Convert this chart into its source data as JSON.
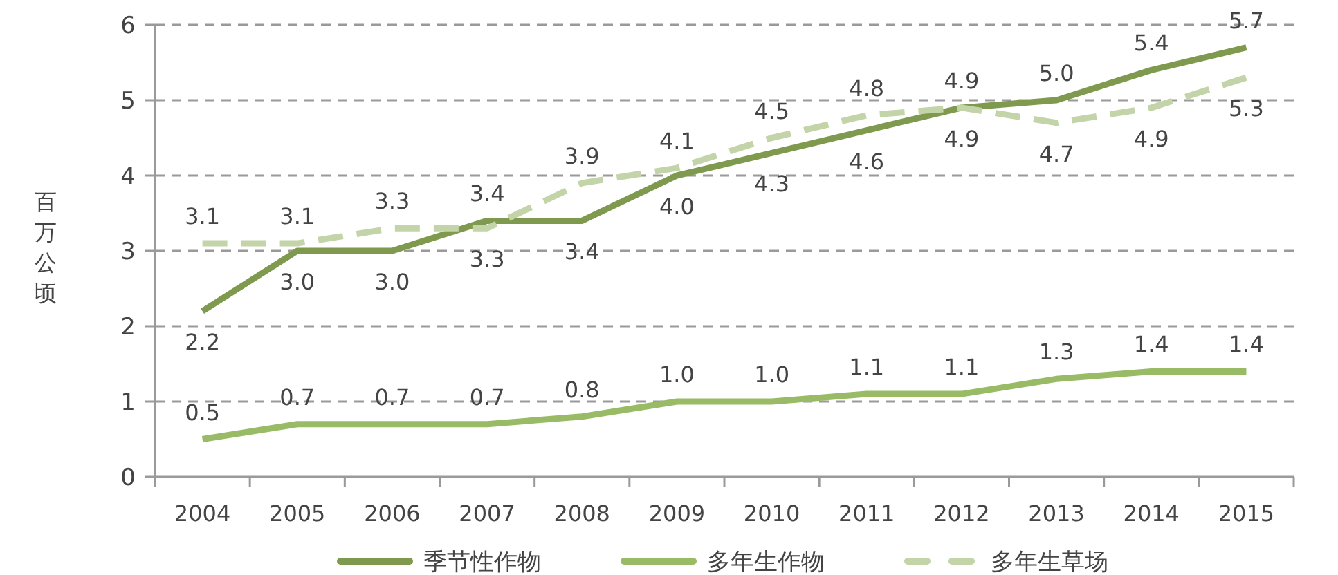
{
  "chart_data": {
    "type": "line",
    "ylabel": "百万公顷",
    "categories": [
      "2004",
      "2005",
      "2006",
      "2007",
      "2008",
      "2009",
      "2010",
      "2011",
      "2012",
      "2013",
      "2014",
      "2015"
    ],
    "series": [
      {
        "name": "季节性作物",
        "color": "#7f9a4f",
        "line_style": "solid",
        "values": [
          2.2,
          3.0,
          3.0,
          3.4,
          3.4,
          4.0,
          4.3,
          4.6,
          4.9,
          5.0,
          5.4,
          5.7
        ],
        "value_labels": [
          "2.2",
          "3.0",
          "3.0",
          "3.4",
          "3.4",
          "4.0",
          "4.3",
          "4.6",
          "4.9",
          "5.0",
          "5.4",
          "5.7"
        ]
      },
      {
        "name": "多年生作物",
        "color": "#99bb66",
        "line_style": "solid",
        "values": [
          0.5,
          0.7,
          0.7,
          0.7,
          0.8,
          1.0,
          1.0,
          1.1,
          1.1,
          1.3,
          1.4,
          1.4
        ],
        "value_labels": [
          "0.5",
          "0.7",
          "0.7",
          "0.7",
          "0.8",
          "1.0",
          "1.0",
          "1.1",
          "1.1",
          "1.3",
          "1.4",
          "1.4"
        ]
      },
      {
        "name": "多年生草场",
        "color": "#c3d4a9",
        "line_style": "dashed",
        "values": [
          3.1,
          3.1,
          3.3,
          3.3,
          3.9,
          4.1,
          4.5,
          4.8,
          4.9,
          4.7,
          4.9,
          5.3
        ],
        "value_labels": [
          "3.1",
          "3.1",
          "3.3",
          "3.3",
          "3.9",
          "4.1",
          "4.5",
          "4.8",
          "4.9",
          "4.7",
          "4.9",
          "5.3"
        ]
      }
    ],
    "ylim": [
      0,
      6
    ],
    "yticks": [
      0,
      1,
      2,
      3,
      4,
      5,
      6
    ],
    "grid": "y",
    "legend": "bottom"
  }
}
